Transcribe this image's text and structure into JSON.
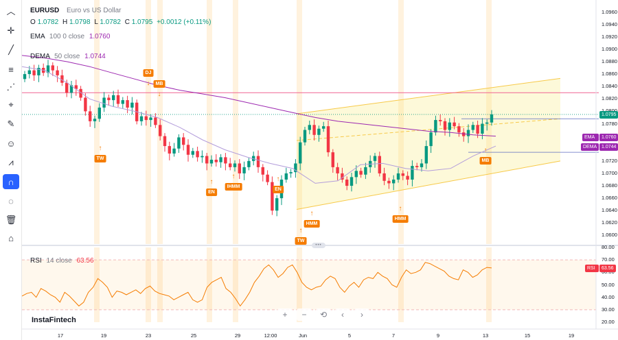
{
  "symbol": {
    "ticker": "EURUSD",
    "description": "Euro vs US Dollar"
  },
  "ohlc": {
    "o_label": "O",
    "o": "1.0782",
    "h_label": "H",
    "h": "1.0798",
    "l_label": "L",
    "l": "1.0782",
    "c_label": "C",
    "c": "1.0795",
    "change": "+0.0012 (+0.11%)"
  },
  "ema": {
    "name": "EMA",
    "params": "100 0 close",
    "value": "1.0760"
  },
  "dema": {
    "name": "DEMA",
    "params": "50 close",
    "value": "1.0744"
  },
  "rsi": {
    "name": "RSI",
    "params": "14 close",
    "value": "63.56"
  },
  "brand": "InstaFintech",
  "price_axis": [
    "1.0960",
    "1.0940",
    "1.0920",
    "1.0900",
    "1.0880",
    "1.0860",
    "1.0840",
    "1.0820",
    "1.0800",
    "1.0780",
    "1.0760",
    "1.0740",
    "1.0720",
    "1.0700",
    "1.0680",
    "1.0660",
    "1.0640",
    "1.0620",
    "1.0600"
  ],
  "rsi_axis": [
    "80.00",
    "70.00",
    "60.00",
    "50.00",
    "40.00",
    "30.00",
    "20.00"
  ],
  "time_axis": [
    "17",
    "19",
    "23",
    "25",
    "29",
    "12:00",
    "Jun",
    "5",
    "7",
    "9",
    "13",
    "15",
    "19"
  ],
  "price_tags": {
    "last": "1.0795",
    "ema_label": "EMA",
    "ema_value": "1.0760",
    "dema_label": "DEMA",
    "dema_value": "1.0744",
    "rsi_label": "RSI",
    "rsi_value": "63.56"
  },
  "patterns": [
    {
      "label": "DJ",
      "dir": "down"
    },
    {
      "label": "MB",
      "dir": "down"
    },
    {
      "label": "TW",
      "dir": "up"
    },
    {
      "label": "EN",
      "dir": "up"
    },
    {
      "label": "IHMM",
      "dir": "up"
    },
    {
      "label": "EN",
      "dir": "up"
    },
    {
      "label": "TW",
      "dir": "up"
    },
    {
      "label": "HMM",
      "dir": "up"
    },
    {
      "label": "HMM",
      "dir": "up"
    },
    {
      "label": "MB",
      "dir": "up"
    }
  ],
  "zoom_controls": [
    "+",
    "−",
    "⟲",
    "‹",
    "›"
  ],
  "toolbar_icons": [
    "chevron-up-icon",
    "cursor-icon",
    "trend-line-icon",
    "fib-icon",
    "pattern-icon",
    "measure-icon",
    "brush-icon",
    "emoji-icon",
    "forecast-icon",
    "magnet-icon",
    "eye-off-icon",
    "trash-icon",
    "lock-icon"
  ],
  "colors": {
    "up": "#089981",
    "down": "#f23645",
    "ema": "#9c27b0",
    "dema": "#b39ddb",
    "channel": "#f7c948",
    "marker": "#f57c00",
    "rsi_line": "#f57c00"
  },
  "chart_data": [
    {
      "type": "candlestick",
      "symbol": "EURUSD",
      "ylim": [
        1.0595,
        1.0965
      ],
      "y_ticks": [
        1.096,
        1.094,
        1.092,
        1.09,
        1.088,
        1.086,
        1.084,
        1.082,
        1.08,
        1.078,
        1.076,
        1.074,
        1.072,
        1.07,
        1.068,
        1.066,
        1.064,
        1.062,
        1.06
      ],
      "x_ticks": [
        "17",
        "19",
        "23",
        "25",
        "29",
        "12:00",
        "Jun",
        "5",
        "7",
        "9",
        "13",
        "15",
        "19"
      ],
      "closes": [
        1.086,
        1.0866,
        1.0858,
        1.087,
        1.0862,
        1.0874,
        1.0866,
        1.0858,
        1.0846,
        1.083,
        1.0842,
        1.0836,
        1.0822,
        1.08,
        1.0784,
        1.0788,
        1.0806,
        1.0822,
        1.0818,
        1.0826,
        1.0812,
        1.0818,
        1.0806,
        1.0814,
        1.0784,
        1.0792,
        1.0786,
        1.079,
        1.0778,
        1.076,
        1.0744,
        1.0732,
        1.074,
        1.0758,
        1.0746,
        1.073,
        1.0736,
        1.0726,
        1.0728,
        1.0716,
        1.0722,
        1.0718,
        1.0726,
        1.0716,
        1.071,
        1.0716,
        1.07,
        1.071,
        1.072,
        1.0728,
        1.071,
        1.0698,
        1.0686,
        1.064,
        1.066,
        1.069,
        1.07,
        1.0702,
        1.0716,
        1.075,
        1.077,
        1.0778,
        1.0762,
        1.0772,
        1.0776,
        1.0734,
        1.071,
        1.07,
        1.069,
        1.068,
        1.0694,
        1.0704,
        1.0698,
        1.071,
        1.072,
        1.0728,
        1.07,
        1.0688,
        1.0684,
        1.069,
        1.07,
        1.0696,
        1.069,
        1.0712,
        1.071,
        1.0716,
        1.0744,
        1.0766,
        1.0786,
        1.0784,
        1.077,
        1.0782,
        1.0776,
        1.0766,
        1.076,
        1.077,
        1.0778,
        1.0764,
        1.078,
        1.0782,
        1.0795
      ],
      "ema_100": [
        1.089,
        1.0886,
        1.088,
        1.0872,
        1.0862,
        1.0852,
        1.0842,
        1.0834,
        1.0828,
        1.0822,
        1.0814,
        1.0806,
        1.0798,
        1.079,
        1.0784,
        1.078,
        1.0776,
        1.0772,
        1.0768,
        1.0766,
        1.0762,
        1.076
      ],
      "dema_50": [
        1.0872,
        1.0866,
        1.0846,
        1.082,
        1.0808,
        1.08,
        1.079,
        1.0774,
        1.0754,
        1.0738,
        1.0726,
        1.0716,
        1.0708,
        1.0684,
        1.0688,
        1.0714,
        1.0716,
        1.0708,
        1.0704,
        1.0708,
        1.0728,
        1.0744
      ],
      "channel": {
        "upper": [
          1.0796,
          1.0853
        ],
        "middle": [
          1.0753,
          1.0788
        ],
        "lower": [
          1.0642,
          1.072
        ]
      },
      "horizontal_lines": [
        1.083,
        1.0795
      ]
    },
    {
      "type": "line",
      "series": [
        {
          "name": "RSI",
          "values": [
            41,
            43,
            44,
            40,
            47,
            45,
            42,
            40,
            36,
            44,
            41,
            37,
            33,
            36,
            44,
            48,
            55,
            52,
            48,
            40,
            45,
            44,
            42,
            44,
            46,
            43,
            47,
            49,
            45,
            43,
            42,
            41,
            38,
            40,
            42,
            44,
            38,
            36,
            38,
            48,
            52,
            54,
            56,
            47,
            44,
            39,
            33,
            38,
            44,
            52,
            57,
            63,
            66,
            62,
            56,
            59,
            64,
            66,
            60,
            52,
            48,
            46,
            48,
            49,
            54,
            57,
            55,
            48,
            44,
            49,
            52,
            48,
            54,
            56,
            55,
            60,
            57,
            55,
            50,
            48,
            56,
            62,
            59,
            60,
            62,
            68,
            67,
            65,
            63,
            61,
            57,
            55,
            54,
            62,
            60,
            56,
            58,
            62,
            64,
            63.56
          ]
        }
      ],
      "ylim": [
        20,
        80
      ],
      "y_ticks": [
        80,
        70,
        60,
        50,
        40,
        30,
        20
      ],
      "levels": [
        70,
        30
      ]
    }
  ]
}
